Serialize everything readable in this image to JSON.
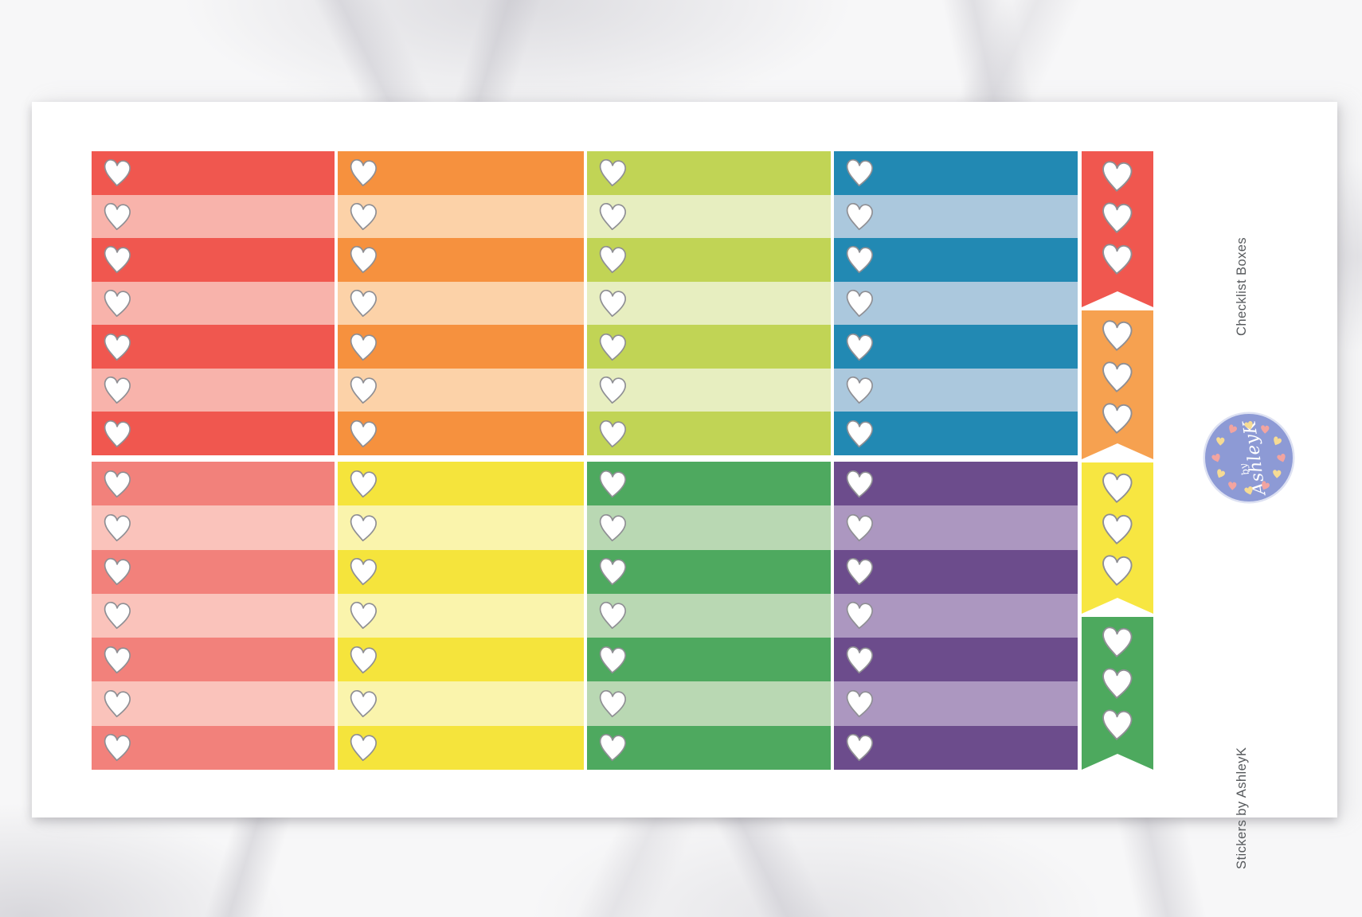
{
  "artwork": {
    "product_label": "Checklist Boxes",
    "brand_label": "Stickers by AshleyK",
    "logo": {
      "prefix": "by",
      "name": "AshleyK"
    }
  },
  "colors": {
    "marble_base": "#F7F7F8",
    "marble_vein": "#C8C7CE",
    "sheet": "#FFFFFF",
    "heart_fill": "#FFFFFF",
    "heart_stroke": "#8F8F94",
    "label_text": "#56595C",
    "logo_circle": "#8D9AD5",
    "logo_heart_pink": "#F2A4A0",
    "logo_heart_yellow": "#F6DB94"
  },
  "checklist_sections": [
    {
      "name": "top",
      "columns": [
        {
          "name": "red",
          "dark": "#F0574F",
          "light": "#F8B3AB",
          "rows": 7
        },
        {
          "name": "orange",
          "dark": "#F6913E",
          "light": "#FCD2A8",
          "rows": 7
        },
        {
          "name": "lime",
          "dark": "#C1D455",
          "light": "#E7EEC0",
          "rows": 7
        },
        {
          "name": "blue",
          "dark": "#2289B3",
          "light": "#ABC8DD",
          "rows": 7
        }
      ]
    },
    {
      "name": "bottom",
      "columns": [
        {
          "name": "salmon",
          "dark": "#F2817B",
          "light": "#FAC3BB",
          "rows": 7
        },
        {
          "name": "yellow",
          "dark": "#F5E43C",
          "light": "#FAF4AC",
          "rows": 7
        },
        {
          "name": "green",
          "dark": "#4EA95F",
          "light": "#B9D8B3",
          "rows": 7
        },
        {
          "name": "purple",
          "dark": "#6C4C8C",
          "light": "#AC97C0",
          "rows": 7
        }
      ]
    }
  ],
  "flag_column": {
    "flags": [
      {
        "name": "red",
        "color": "#F0574F",
        "hearts": 3
      },
      {
        "name": "orange",
        "color": "#F6A150",
        "hearts": 3
      },
      {
        "name": "yellow",
        "color": "#F7E641",
        "hearts": 3
      },
      {
        "name": "green",
        "color": "#4DA95E",
        "hearts": 3
      }
    ]
  },
  "logo_ring": {
    "heart_count": 12
  }
}
